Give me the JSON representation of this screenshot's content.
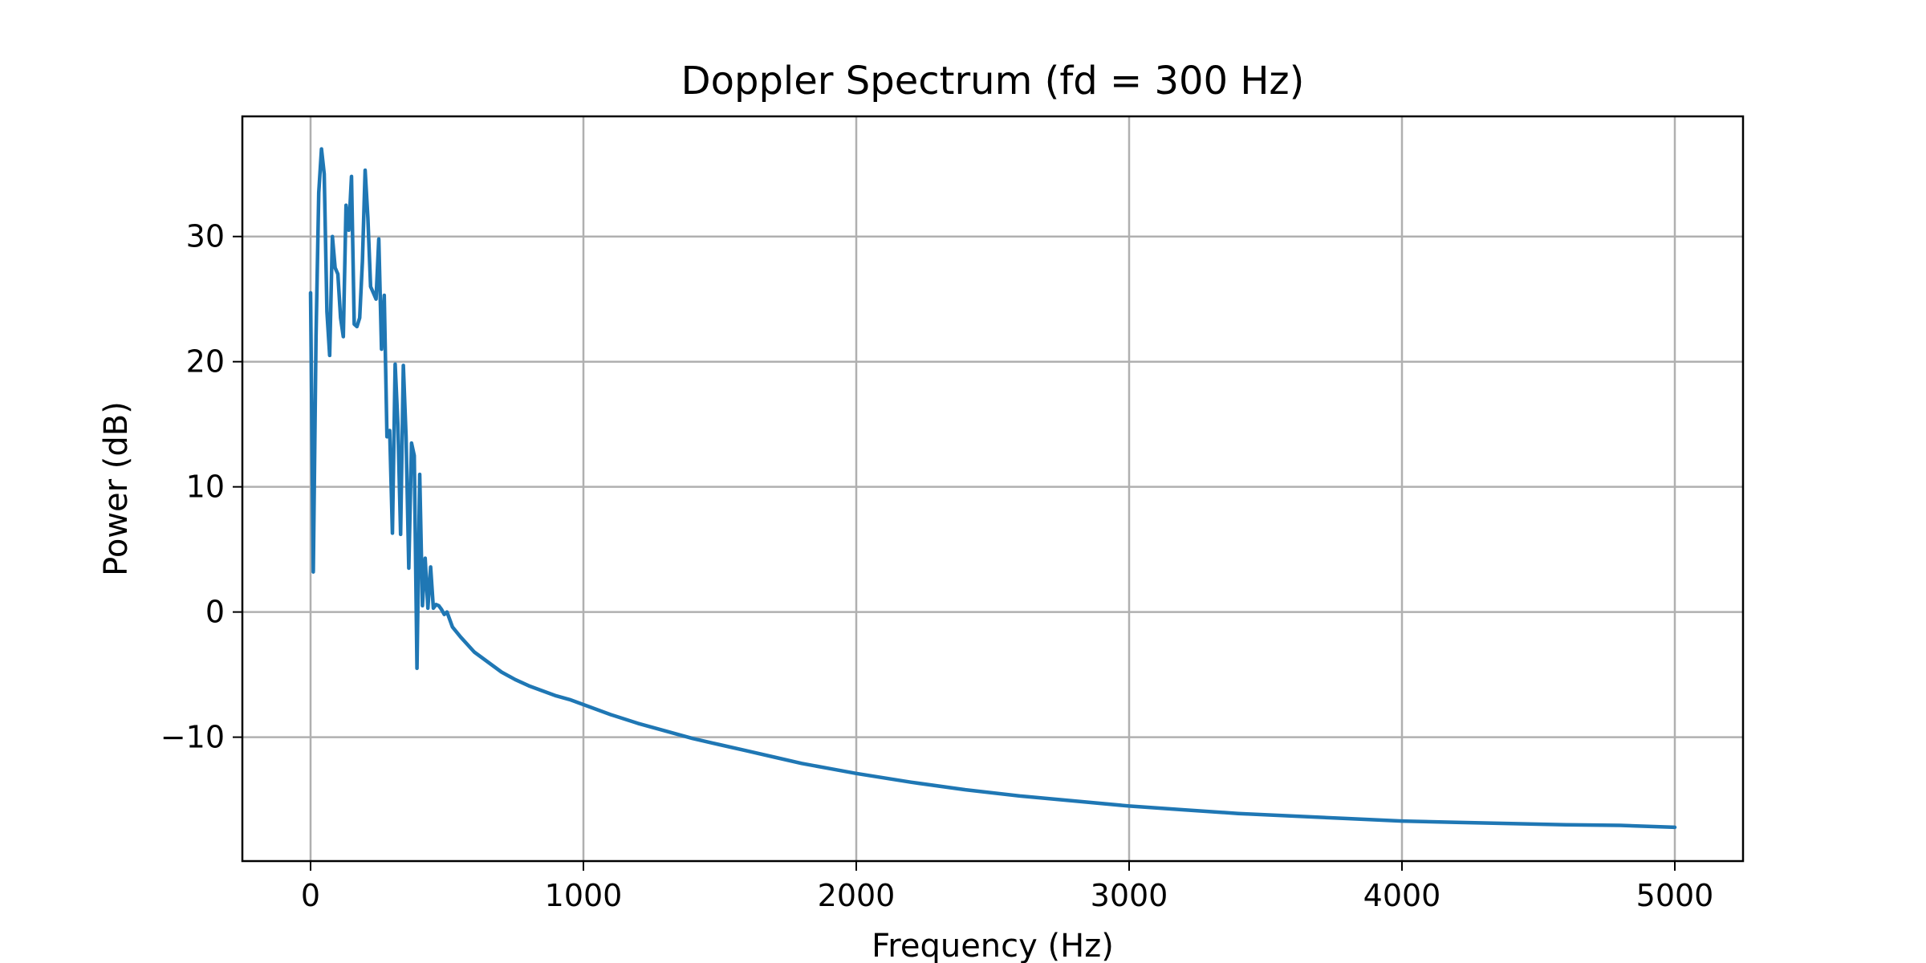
{
  "chart_data": {
    "type": "line",
    "title": "Doppler Spectrum (fd = 300 Hz)",
    "xlabel": "Frequency (Hz)",
    "ylabel": "Power (dB)",
    "xlim": [
      -250,
      5250
    ],
    "ylim": [
      -19.9,
      39.6
    ],
    "xticks": [
      0,
      1000,
      2000,
      3000,
      4000,
      5000
    ],
    "xtick_labels": [
      "0",
      "1000",
      "2000",
      "3000",
      "4000",
      "5000"
    ],
    "yticks": [
      -10,
      0,
      10,
      20,
      30
    ],
    "ytick_labels": [
      "−10",
      "0",
      "10",
      "20",
      "30"
    ],
    "grid": true,
    "legend": false,
    "series": [
      {
        "color": "#1f77b4",
        "x": [
          0,
          10,
          20,
          30,
          40,
          50,
          60,
          70,
          80,
          90,
          100,
          110,
          120,
          130,
          140,
          150,
          160,
          170,
          180,
          190,
          200,
          210,
          220,
          230,
          240,
          250,
          260,
          270,
          280,
          290,
          300,
          310,
          320,
          330,
          340,
          350,
          360,
          370,
          380,
          390,
          400,
          410,
          420,
          430,
          440,
          450,
          460,
          470,
          480,
          490,
          500,
          520,
          550,
          600,
          650,
          700,
          750,
          800,
          850,
          900,
          950,
          1000,
          1100,
          1200,
          1300,
          1400,
          1500,
          1600,
          1700,
          1800,
          1900,
          2000,
          2200,
          2400,
          2600,
          2800,
          3000,
          3200,
          3400,
          3600,
          3800,
          4000,
          4200,
          4400,
          4600,
          4800,
          5000
        ],
        "y": [
          25.5,
          3.2,
          22,
          33.5,
          37,
          35,
          24,
          20.5,
          30,
          27.5,
          27,
          23.5,
          22,
          32.5,
          30.5,
          34.8,
          23,
          22.8,
          23.5,
          28,
          35.3,
          31.5,
          26,
          25.5,
          25,
          29.8,
          21,
          25.3,
          14,
          14.5,
          6.3,
          19.8,
          15,
          6.2,
          19.7,
          14,
          3.5,
          13.5,
          12.5,
          -4.5,
          11,
          0.5,
          4.3,
          0.3,
          3.6,
          0.3,
          0.6,
          0.5,
          0.2,
          -0.2,
          0.0,
          -1.2,
          -2.0,
          -3.2,
          -4.0,
          -4.8,
          -5.4,
          -5.9,
          -6.3,
          -6.7,
          -7.0,
          -7.4,
          -8.2,
          -8.9,
          -9.5,
          -10.1,
          -10.6,
          -11.1,
          -11.6,
          -12.1,
          -12.5,
          -12.9,
          -13.6,
          -14.2,
          -14.7,
          -15.1,
          -15.5,
          -15.8,
          -16.1,
          -16.3,
          -16.5,
          -16.7,
          -16.8,
          -16.9,
          -17.0,
          -17.05,
          -17.2
        ]
      }
    ]
  }
}
